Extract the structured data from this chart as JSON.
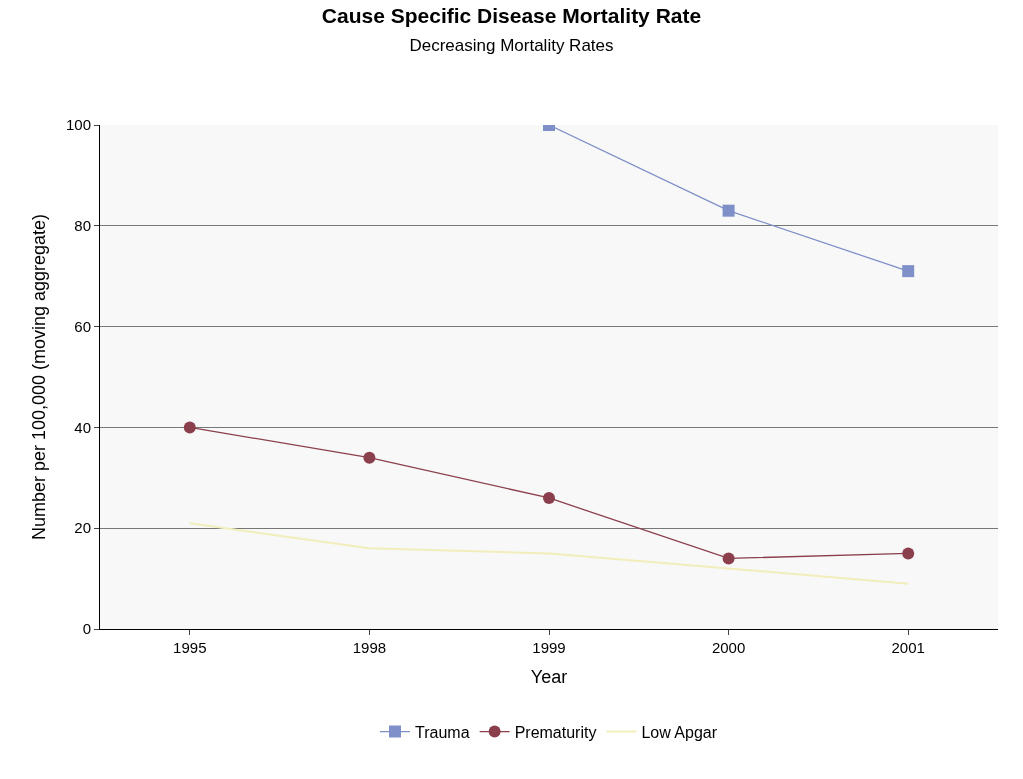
{
  "chart_data": {
    "type": "line",
    "title": "Cause Specific Disease Mortality Rate",
    "subtitle": "Decreasing Mortality Rates",
    "xlabel": "Year",
    "ylabel": "Number per 100,000 (moving aggregate)",
    "categories": [
      "1995",
      "1998",
      "1999",
      "2000",
      "2001"
    ],
    "series": [
      {
        "name": "Trauma",
        "color": "#7f8fc8",
        "marker": "square",
        "values": [
          null,
          null,
          100,
          83,
          71
        ]
      },
      {
        "name": "Prematurity",
        "color": "#8b3f4c",
        "marker": "circle",
        "values": [
          40,
          34,
          26,
          14,
          15
        ]
      },
      {
        "name": "Low Apgar",
        "color": "#f2eebc",
        "marker": "none",
        "values": [
          21,
          16,
          15,
          12,
          9
        ]
      }
    ],
    "ylim": [
      0,
      100
    ],
    "yticks": [
      0,
      20,
      40,
      60,
      80,
      100
    ],
    "grid": "y",
    "legend": "bottom"
  }
}
